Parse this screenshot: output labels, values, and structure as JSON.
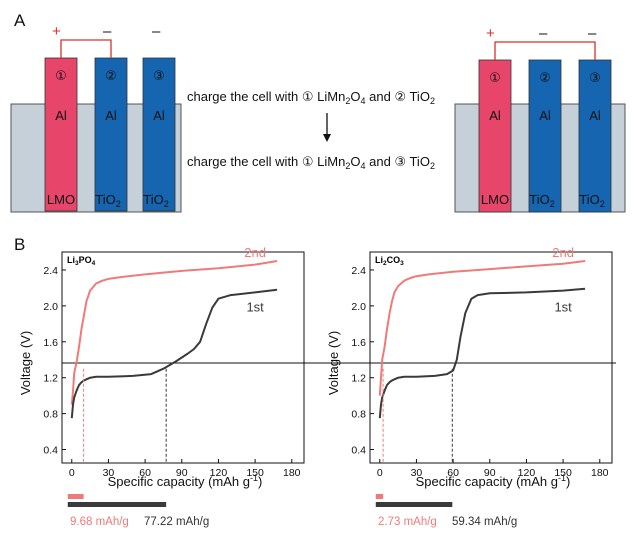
{
  "panelA": {
    "label": "A",
    "circled": [
      "①",
      "②",
      "③"
    ],
    "electrode_metal": "Al",
    "bottom_labels": [
      "LMO",
      "TiO",
      "TiO"
    ],
    "subscript_2": "2",
    "plus_sign": "+",
    "minus_sign": "–",
    "line1": {
      "pre": "charge the cell with ",
      "c1": "①",
      "m1": " LiMn",
      "s1": "2",
      "m2": "O",
      "s2": "4",
      "m3": " and ",
      "c2": "②",
      "m4": " TiO",
      "s3": "2"
    },
    "line2": {
      "pre": "charge the cell with ",
      "c1": "①",
      "m1": " LiMn",
      "s1": "2",
      "m2": "O",
      "s2": "4",
      "m3": " and ",
      "c2": "③",
      "m4": " TiO",
      "s3": "2"
    },
    "colors": {
      "red": "#e8456b",
      "blue": "#1565b0",
      "electrolyte": "#c5d0d8",
      "wire": "#d9302b"
    }
  },
  "panelB": {
    "label": "B",
    "xlabel": "Specific capacity (mAh g",
    "xlabel_sup": "-1",
    "xlabel_end": ")",
    "ylabel": "Voltage (V)"
  },
  "chart_data": [
    {
      "type": "line",
      "title": "Li3PO4",
      "title_parts": {
        "a": "Li",
        "b": "3",
        "c": "PO",
        "d": "4"
      },
      "xlim": [
        -8,
        190
      ],
      "ylim": [
        0.25,
        2.6
      ],
      "xticks": [
        0,
        30,
        60,
        90,
        120,
        150,
        180
      ],
      "yticks": [
        0.4,
        0.8,
        1.2,
        1.6,
        2.0,
        2.4
      ],
      "reference_voltage": 1.3,
      "series": [
        {
          "name": "2nd",
          "color": "#ef7a7a",
          "x": [
            0,
            1,
            2,
            4,
            6,
            8,
            10,
            12,
            15,
            20,
            25,
            30,
            40,
            60,
            90,
            120,
            150,
            168
          ],
          "y": [
            0.9,
            1.05,
            1.25,
            1.38,
            1.55,
            1.75,
            1.9,
            2.05,
            2.17,
            2.25,
            2.28,
            2.3,
            2.32,
            2.35,
            2.39,
            2.42,
            2.46,
            2.5
          ]
        },
        {
          "name": "1st",
          "color": "#3a3a3a",
          "x": [
            0,
            1,
            2,
            4,
            6,
            8,
            10,
            15,
            20,
            30,
            50,
            65,
            75,
            85,
            95,
            100,
            105,
            110,
            115,
            120,
            130,
            150,
            168
          ],
          "y": [
            0.75,
            0.9,
            0.98,
            1.06,
            1.12,
            1.15,
            1.17,
            1.2,
            1.21,
            1.21,
            1.22,
            1.24,
            1.3,
            1.38,
            1.47,
            1.52,
            1.6,
            1.8,
            1.98,
            2.08,
            2.12,
            2.15,
            2.18
          ]
        }
      ],
      "capacity_labels": [
        {
          "text": "9.68 mAh/g",
          "value": 9.68,
          "color": "#ef7a7a"
        },
        {
          "text": "77.22 mAh/g",
          "value": 77.22,
          "color": "#3a3a3a"
        }
      ]
    },
    {
      "type": "line",
      "title": "Li2CO3",
      "title_parts": {
        "a": "Li",
        "b": "2",
        "c": "CO",
        "d": "3"
      },
      "xlim": [
        -8,
        190
      ],
      "ylim": [
        0.25,
        2.6
      ],
      "xticks": [
        0,
        30,
        60,
        90,
        120,
        150,
        180
      ],
      "yticks": [
        0.4,
        0.8,
        1.2,
        1.6,
        2.0,
        2.4
      ],
      "reference_voltage": 1.3,
      "series": [
        {
          "name": "2nd",
          "color": "#ef7a7a",
          "x": [
            0,
            1,
            2,
            4,
            6,
            8,
            10,
            12,
            15,
            20,
            25,
            30,
            40,
            60,
            90,
            120,
            150,
            168
          ],
          "y": [
            1.0,
            1.2,
            1.4,
            1.55,
            1.75,
            1.92,
            2.05,
            2.15,
            2.22,
            2.28,
            2.31,
            2.33,
            2.35,
            2.38,
            2.41,
            2.44,
            2.47,
            2.5
          ]
        },
        {
          "name": "1st",
          "color": "#3a3a3a",
          "x": [
            0,
            1,
            2,
            4,
            6,
            8,
            10,
            15,
            20,
            30,
            45,
            55,
            60,
            63,
            66,
            70,
            75,
            80,
            90,
            120,
            150,
            168
          ],
          "y": [
            0.75,
            0.9,
            0.98,
            1.06,
            1.12,
            1.15,
            1.17,
            1.2,
            1.21,
            1.21,
            1.22,
            1.24,
            1.28,
            1.4,
            1.65,
            1.92,
            2.08,
            2.12,
            2.14,
            2.15,
            2.17,
            2.19
          ]
        }
      ],
      "capacity_labels": [
        {
          "text": "2.73 mAh/g",
          "value": 2.73,
          "color": "#ef7a7a"
        },
        {
          "text": "59.34 mAh/g",
          "value": 59.34,
          "color": "#3a3a3a"
        }
      ]
    }
  ]
}
